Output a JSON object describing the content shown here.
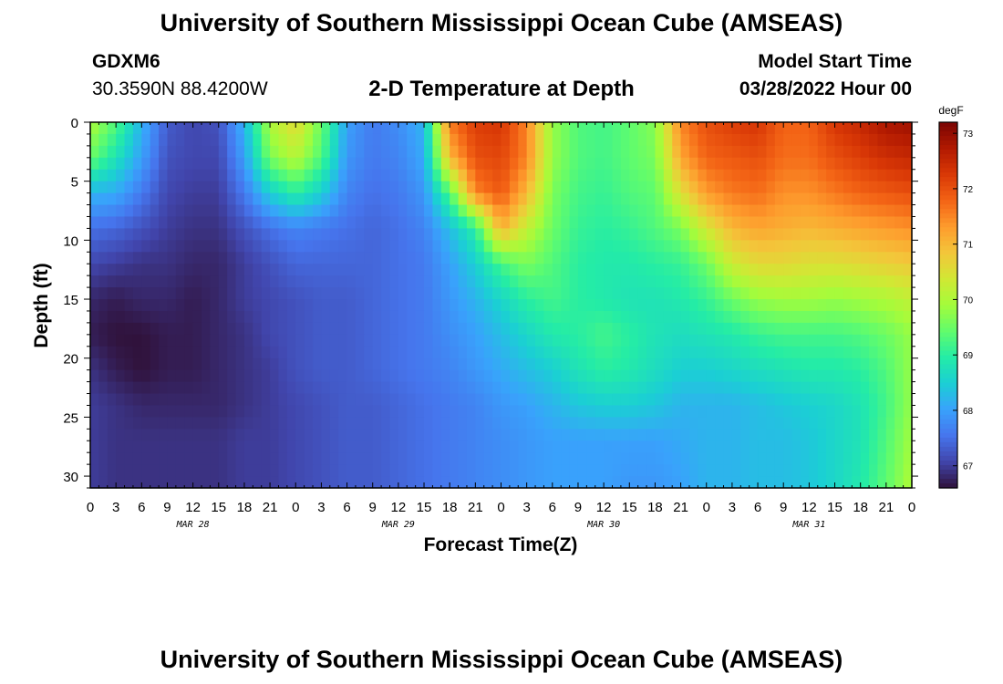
{
  "header": {
    "title": "University of Southern Mississippi Ocean Cube (AMSEAS)",
    "station": "GDXM6",
    "coords": "30.3590N  88.4200W",
    "plot_title": "2-D Temperature at Depth",
    "start_label": "Model Start Time",
    "start_value": "03/28/2022 Hour 00"
  },
  "footer": {
    "title": "University of Southern Mississippi Ocean Cube (AMSEAS)"
  },
  "colors": {
    "colormap": [
      "#30123b",
      "#4145ab",
      "#4675ed",
      "#39a2fc",
      "#1bcfd4",
      "#24eca6",
      "#61fc6c",
      "#a4fc3b",
      "#d1e834",
      "#f3c63a",
      "#fe9b2d",
      "#f36315",
      "#d93806",
      "#b11901",
      "#7a0403"
    ]
  },
  "chart_data": {
    "type": "heatmap",
    "title": "2-D Temperature at Depth",
    "xlabel": "Forecast Time(Z)",
    "ylabel": "Depth (ft)",
    "x_hours": [
      0,
      96
    ],
    "x_ticks": [
      "0",
      "3",
      "6",
      "9",
      "12",
      "15",
      "18",
      "21",
      "0",
      "3",
      "6",
      "9",
      "12",
      "15",
      "18",
      "21",
      "0",
      "3",
      "6",
      "9",
      "12",
      "15",
      "18",
      "21",
      "0",
      "3",
      "6",
      "9",
      "12",
      "15",
      "18",
      "21",
      "0"
    ],
    "date_labels": [
      {
        "label": "MAR 28",
        "hour": 12
      },
      {
        "label": "MAR 29",
        "hour": 36
      },
      {
        "label": "MAR 30",
        "hour": 60
      },
      {
        "label": "MAR 31",
        "hour": 84
      }
    ],
    "ylim": [
      0,
      31
    ],
    "y_ticks": [
      0,
      5,
      10,
      15,
      20,
      25,
      30
    ],
    "colorbar": {
      "unit": "degF",
      "range": [
        66.6,
        73.2
      ],
      "ticks": [
        67,
        68,
        69,
        70,
        71,
        72,
        73
      ]
    },
    "depths_ft": [
      0,
      3,
      6,
      9,
      12,
      15,
      18,
      21,
      24,
      27,
      31
    ],
    "hours": [
      0,
      3,
      6,
      9,
      12,
      15,
      18,
      21,
      24,
      27,
      30,
      33,
      36,
      39,
      42,
      45,
      48,
      51,
      54,
      57,
      60,
      63,
      66,
      69,
      72,
      75,
      78,
      81,
      84,
      87,
      90,
      93,
      96
    ],
    "values_degF": [
      [
        70.0,
        69.3,
        68.2,
        67.3,
        67.1,
        67.2,
        68.2,
        70.0,
        70.6,
        69.5,
        68.0,
        67.6,
        67.8,
        68.2,
        71.6,
        72.2,
        72.3,
        71.5,
        69.8,
        69.3,
        69.2,
        69.4,
        69.7,
        71.5,
        72.0,
        72.2,
        72.3,
        71.8,
        71.8,
        72.3,
        72.5,
        72.8,
        72.9
      ],
      [
        69.5,
        68.8,
        68.0,
        67.2,
        67.1,
        67.1,
        68.0,
        69.6,
        70.1,
        69.3,
        67.9,
        67.6,
        67.7,
        68.1,
        71.0,
        72.0,
        72.1,
        71.5,
        69.8,
        69.3,
        69.2,
        69.4,
        69.6,
        71.2,
        71.8,
        71.9,
        72.0,
        71.7,
        71.7,
        72.0,
        72.2,
        72.4,
        72.5
      ],
      [
        68.2,
        68.1,
        67.6,
        67.1,
        67.0,
        67.0,
        67.6,
        68.5,
        69.0,
        68.5,
        67.7,
        67.5,
        67.6,
        67.9,
        69.3,
        71.5,
        71.9,
        71.0,
        69.6,
        69.2,
        69.1,
        69.3,
        69.4,
        70.5,
        71.3,
        71.6,
        71.7,
        71.4,
        71.4,
        71.6,
        71.8,
        71.9,
        72.0
      ],
      [
        67.5,
        67.4,
        67.2,
        67.0,
        66.9,
        66.9,
        67.2,
        67.5,
        67.7,
        67.6,
        67.5,
        67.4,
        67.5,
        67.7,
        68.3,
        69.0,
        71.1,
        70.2,
        69.5,
        69.1,
        69.0,
        69.1,
        69.3,
        69.6,
        70.4,
        71.0,
        71.2,
        71.1,
        71.0,
        71.1,
        71.2,
        71.3,
        71.4
      ],
      [
        67.1,
        67.0,
        66.9,
        66.9,
        66.8,
        66.8,
        67.0,
        67.2,
        67.4,
        67.4,
        67.4,
        67.4,
        67.5,
        67.6,
        68.0,
        68.5,
        69.2,
        69.6,
        69.3,
        69.0,
        68.9,
        68.9,
        69.0,
        69.1,
        69.5,
        70.3,
        70.6,
        70.6,
        70.5,
        70.5,
        70.6,
        70.7,
        70.8
      ],
      [
        66.8,
        66.7,
        66.8,
        66.8,
        66.7,
        66.8,
        67.0,
        67.1,
        67.2,
        67.3,
        67.3,
        67.4,
        67.5,
        67.6,
        67.9,
        68.2,
        68.6,
        69.0,
        69.2,
        69.0,
        68.9,
        68.8,
        68.8,
        68.9,
        69.1,
        69.5,
        69.8,
        69.9,
        69.9,
        69.8,
        69.9,
        70.0,
        70.2
      ],
      [
        66.7,
        66.6,
        66.6,
        66.7,
        66.7,
        66.8,
        66.9,
        67.1,
        67.2,
        67.3,
        67.3,
        67.4,
        67.5,
        67.6,
        67.8,
        68.0,
        68.3,
        68.6,
        68.9,
        69.0,
        69.2,
        69.0,
        68.8,
        68.7,
        68.8,
        68.9,
        69.1,
        69.2,
        69.2,
        69.2,
        69.3,
        69.5,
        69.8
      ],
      [
        66.9,
        66.7,
        66.6,
        66.7,
        66.7,
        66.8,
        66.9,
        67.0,
        67.2,
        67.3,
        67.3,
        67.4,
        67.5,
        67.6,
        67.7,
        67.9,
        68.1,
        68.3,
        68.5,
        68.8,
        69.0,
        68.9,
        68.7,
        68.5,
        68.5,
        68.6,
        68.7,
        68.8,
        68.9,
        68.9,
        69.0,
        69.3,
        69.8
      ],
      [
        67.0,
        66.9,
        66.8,
        66.8,
        66.8,
        66.8,
        66.9,
        67.0,
        67.1,
        67.2,
        67.3,
        67.3,
        67.4,
        67.5,
        67.6,
        67.7,
        67.9,
        68.0,
        68.2,
        68.4,
        68.5,
        68.5,
        68.4,
        68.2,
        68.2,
        68.2,
        68.3,
        68.4,
        68.5,
        68.6,
        68.8,
        69.2,
        69.8
      ],
      [
        67.0,
        66.9,
        66.9,
        66.9,
        66.9,
        66.9,
        67.0,
        67.0,
        67.1,
        67.2,
        67.3,
        67.3,
        67.4,
        67.5,
        67.6,
        67.7,
        67.8,
        67.9,
        68.0,
        68.0,
        68.0,
        68.0,
        68.0,
        68.1,
        68.2,
        68.2,
        68.3,
        68.3,
        68.4,
        68.6,
        68.8,
        69.3,
        69.9
      ],
      [
        67.0,
        66.9,
        66.9,
        66.9,
        66.9,
        66.9,
        67.0,
        67.0,
        67.1,
        67.2,
        67.3,
        67.3,
        67.4,
        67.5,
        67.6,
        67.7,
        67.8,
        67.9,
        68.0,
        68.0,
        68.0,
        67.9,
        67.9,
        68.0,
        68.2,
        68.2,
        68.3,
        68.3,
        68.4,
        68.6,
        68.9,
        69.4,
        70.0
      ]
    ]
  }
}
